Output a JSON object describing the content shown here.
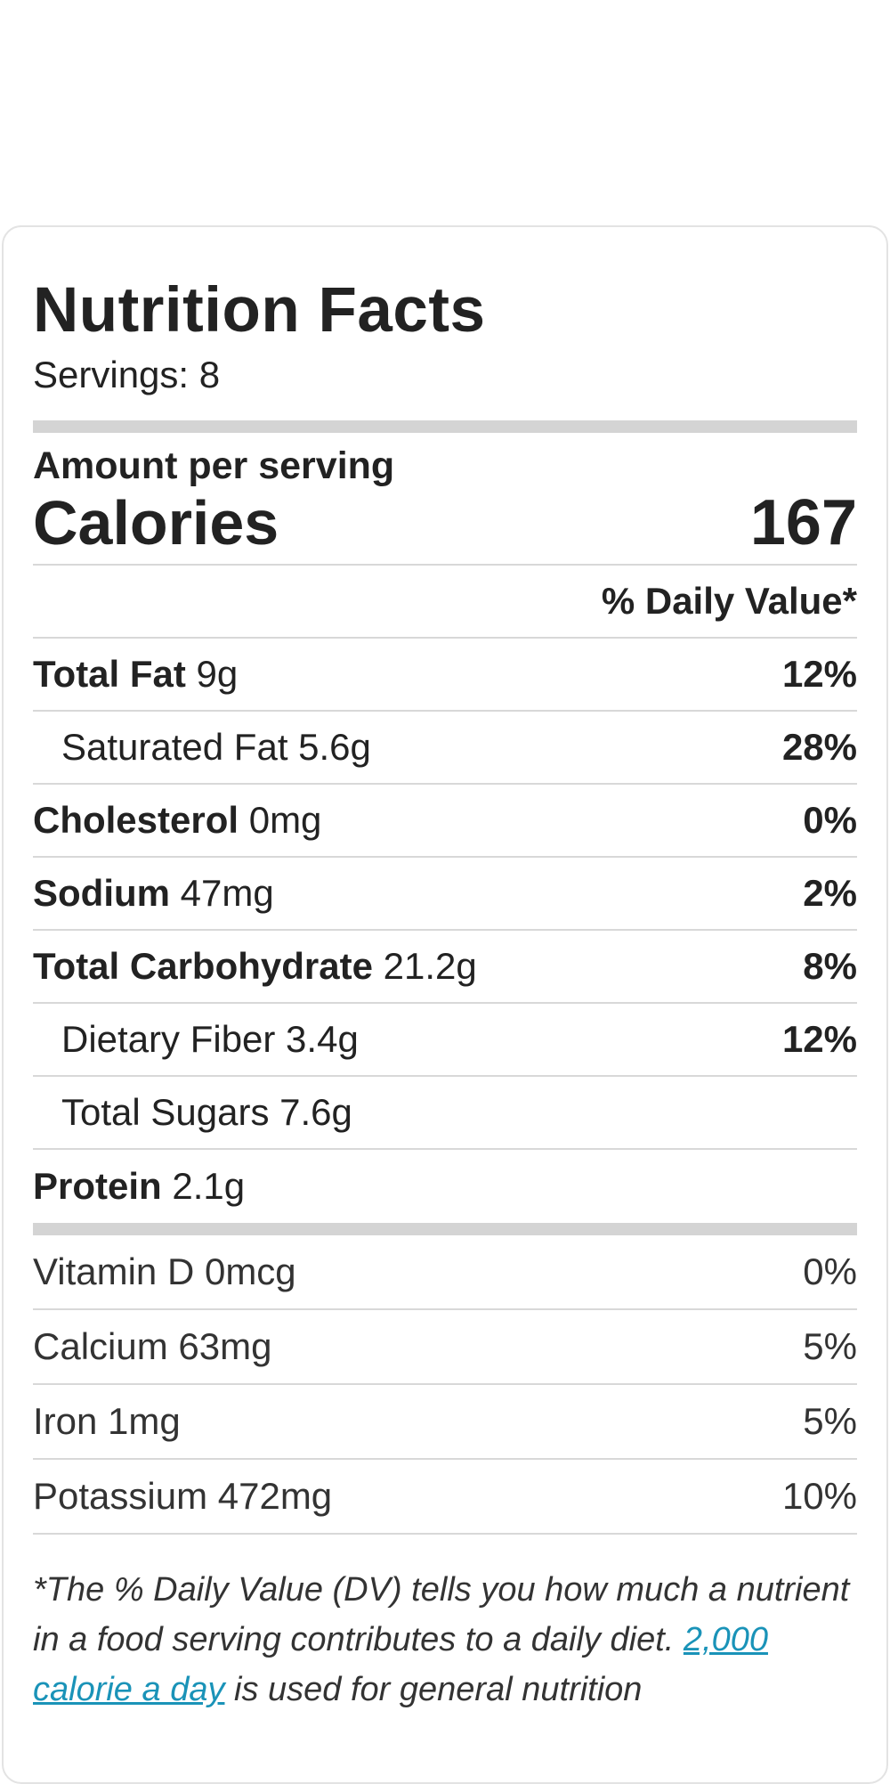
{
  "title": "Nutrition Facts",
  "servings": "Servings: 8",
  "amount_per_serving": "Amount per serving",
  "calories": {
    "label": "Calories",
    "value": "167"
  },
  "daily_value_header": "% Daily Value*",
  "nutrients": [
    {
      "name": "Total Fat",
      "amount": " 9g",
      "pct": "12%"
    },
    {
      "name": "Saturated Fat 5.6g",
      "pct": "28%"
    },
    {
      "name": "Cholesterol",
      "amount": " 0mg",
      "pct": "0%"
    },
    {
      "name": "Sodium",
      "amount": " 47mg",
      "pct": "2%"
    },
    {
      "name": "Total Carbohydrate",
      "amount": " 21.2g",
      "pct": "8%"
    },
    {
      "name": "Dietary Fiber 3.4g",
      "pct": "12%"
    },
    {
      "name": "Total Sugars 7.6g"
    },
    {
      "name": "Protein",
      "amount": " 2.1g"
    }
  ],
  "vitamins": [
    {
      "name": "Vitamin D 0mcg",
      "pct": "0%"
    },
    {
      "name": "Calcium 63mg",
      "pct": "5%"
    },
    {
      "name": "Iron 1mg",
      "pct": "5%"
    },
    {
      "name": "Potassium 472mg",
      "pct": "10%"
    }
  ],
  "footnote": {
    "text": "*The % Daily Value (DV) tells you how much a nutrient in a food serving contributes to a daily diet.",
    "link": "2,000 calorie a day",
    "rest": " is used for general nutrition"
  },
  "colors": {
    "link": "#1a93b8",
    "bar": "#d4d4d4",
    "divider": "#d8d8d8"
  }
}
